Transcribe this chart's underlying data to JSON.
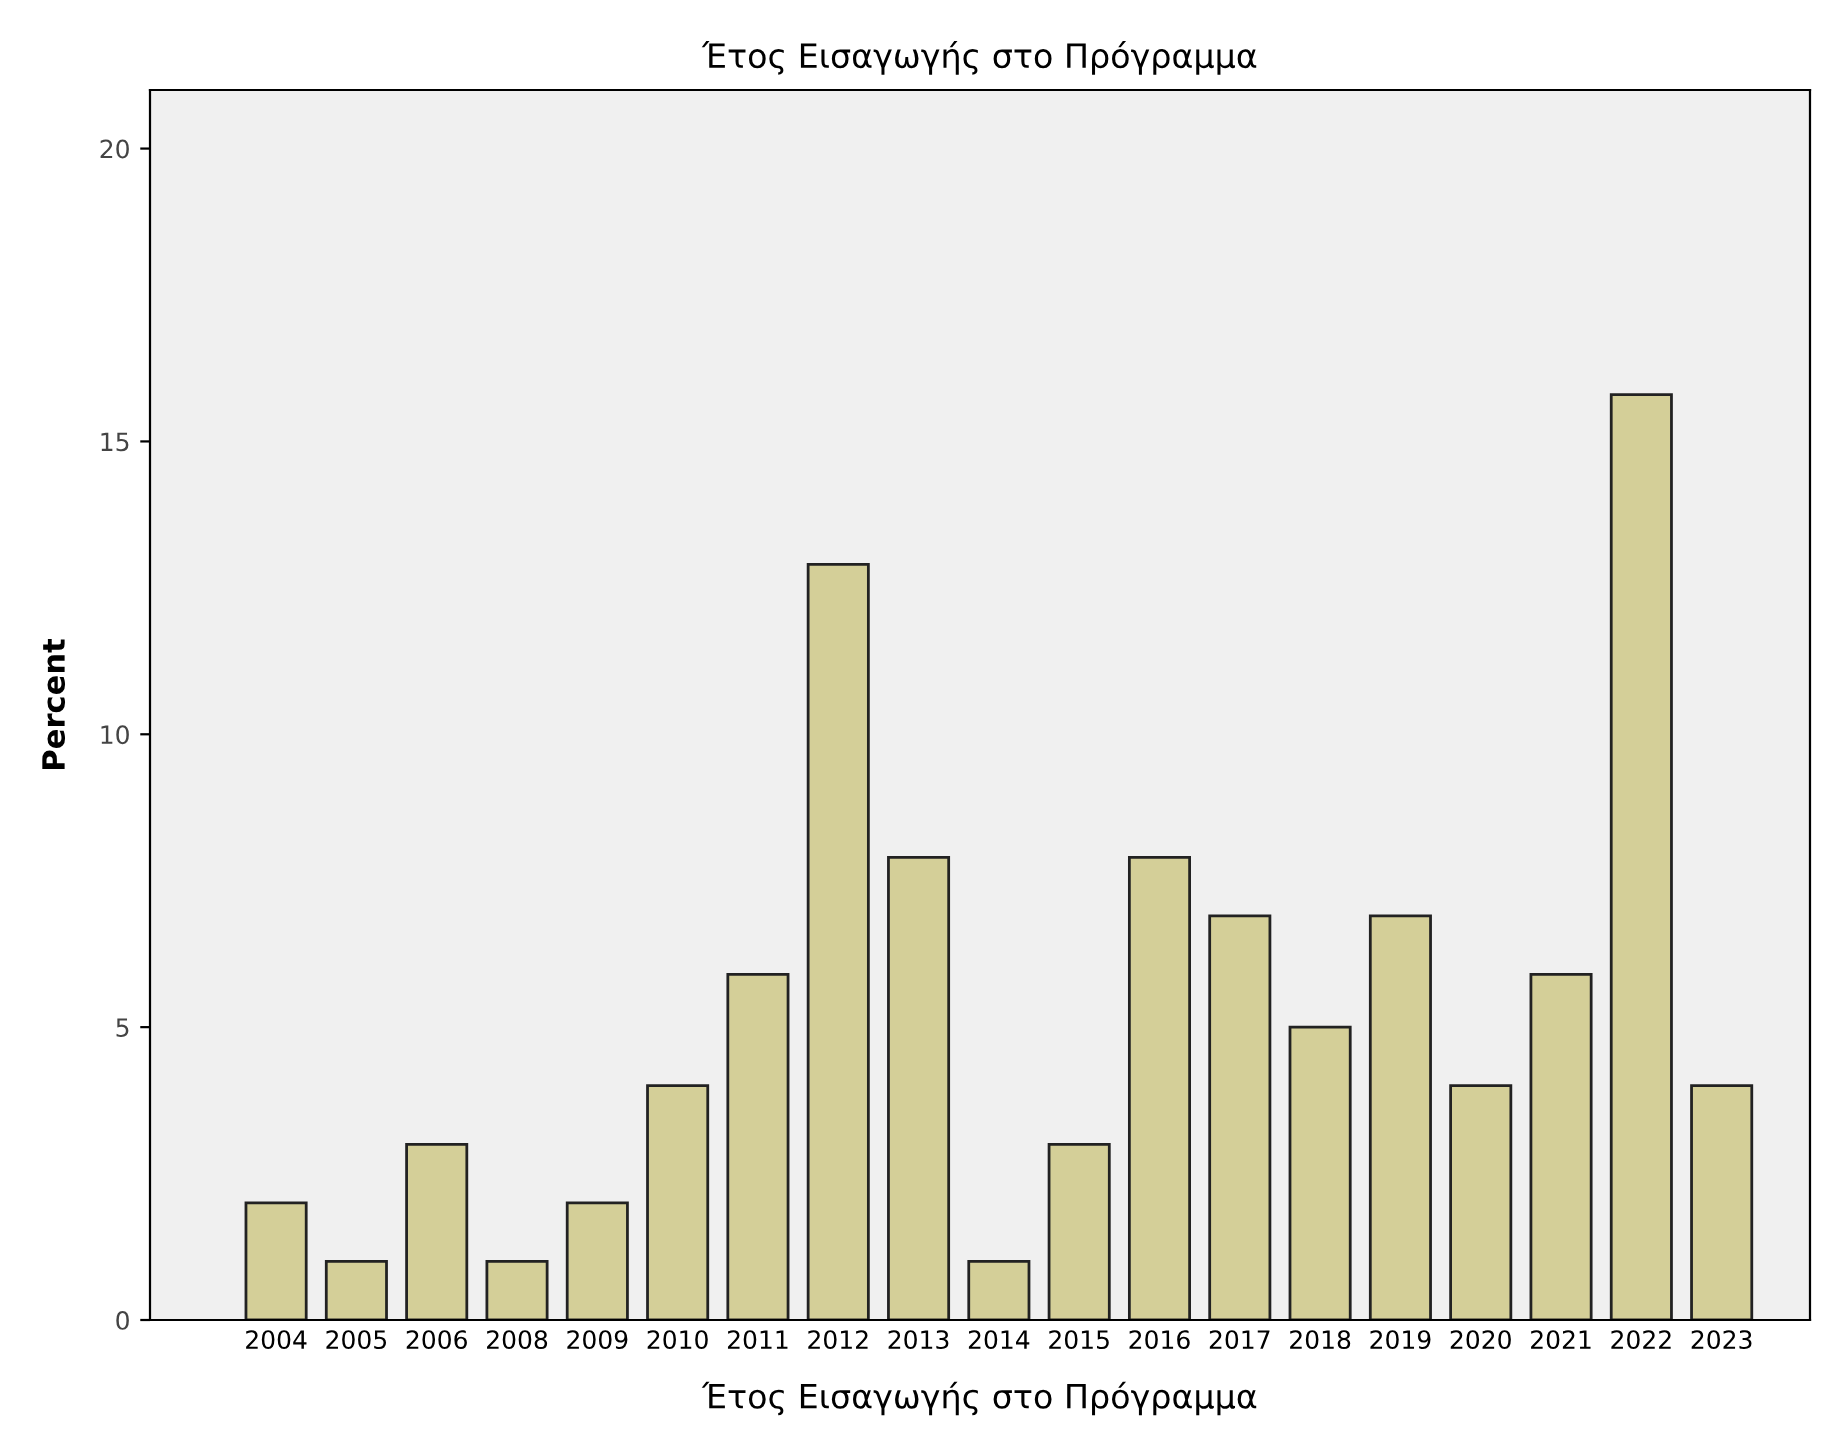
{
  "chart_data": {
    "type": "bar",
    "title": "Έτος Εισαγωγής στο Πρόγραμμα",
    "xlabel": "Έτος Εισαγωγής στο Πρόγραμμα",
    "ylabel": "Percent",
    "categories": [
      "2004",
      "2005",
      "2006",
      "2008",
      "2009",
      "2010",
      "2011",
      "2012",
      "2013",
      "2014",
      "2015",
      "2016",
      "2017",
      "2018",
      "2019",
      "2020",
      "2021",
      "2022",
      "2023"
    ],
    "values": [
      2.0,
      1.0,
      3.0,
      1.0,
      2.0,
      4.0,
      5.9,
      12.9,
      7.9,
      1.0,
      3.0,
      7.9,
      6.9,
      5.0,
      6.9,
      4.0,
      5.9,
      15.8,
      4.0
    ],
    "color": "#d4cf98",
    "ylim": [
      0,
      21
    ],
    "yticks": [
      0,
      5,
      10,
      15,
      20
    ],
    "grid": false,
    "legend": false
  }
}
